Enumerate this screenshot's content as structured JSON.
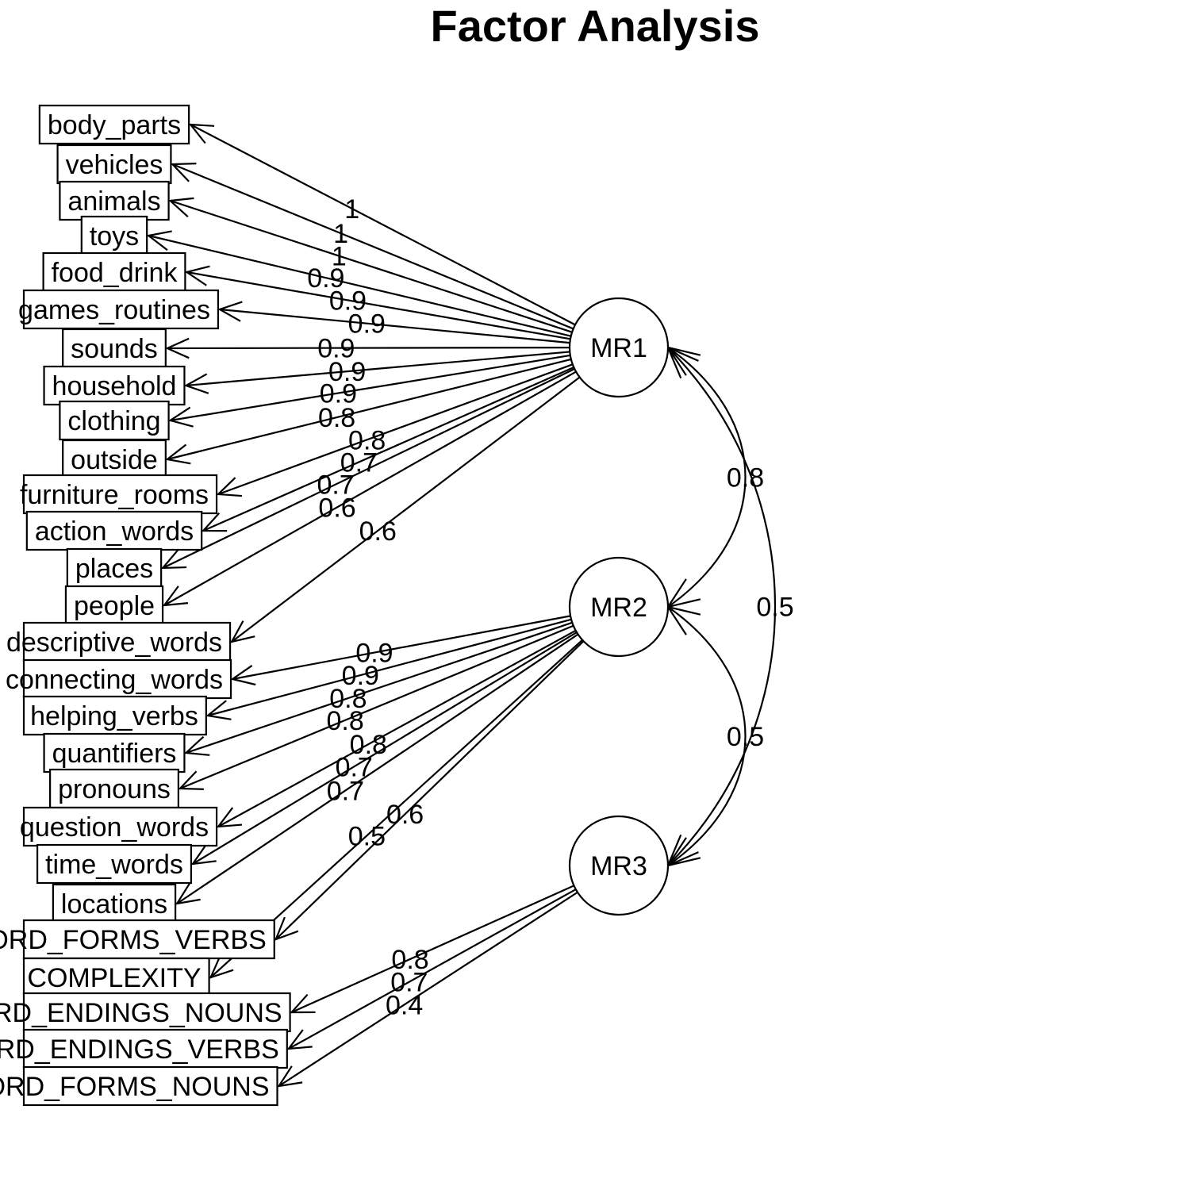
{
  "title": "Factor Analysis",
  "factors": [
    "MR1",
    "MR2",
    "MR3"
  ],
  "variables": [
    {
      "label": "body_parts",
      "factor": "MR1",
      "loading": "1"
    },
    {
      "label": "vehicles",
      "factor": "MR1",
      "loading": "1"
    },
    {
      "label": "animals",
      "factor": "MR1",
      "loading": "1"
    },
    {
      "label": "toys",
      "factor": "MR1",
      "loading": "0.9"
    },
    {
      "label": "food_drink",
      "factor": "MR1",
      "loading": "0.9"
    },
    {
      "label": "games_routines",
      "factor": "MR1",
      "loading": "0.9"
    },
    {
      "label": "sounds",
      "factor": "MR1",
      "loading": "0.9"
    },
    {
      "label": "household",
      "factor": "MR1",
      "loading": "0.9"
    },
    {
      "label": "clothing",
      "factor": "MR1",
      "loading": "0.9"
    },
    {
      "label": "outside",
      "factor": "MR1",
      "loading": "0.8"
    },
    {
      "label": "furniture_rooms",
      "factor": "MR1",
      "loading": "0.8"
    },
    {
      "label": "action_words",
      "factor": "MR1",
      "loading": "0.7"
    },
    {
      "label": "places",
      "factor": "MR1",
      "loading": "0.7"
    },
    {
      "label": "people",
      "factor": "MR1",
      "loading": "0.6"
    },
    {
      "label": "descriptive_words",
      "factor": "MR1",
      "loading": "0.6"
    },
    {
      "label": "connecting_words",
      "factor": "MR2",
      "loading": "0.9"
    },
    {
      "label": "helping_verbs",
      "factor": "MR2",
      "loading": "0.9"
    },
    {
      "label": "quantifiers",
      "factor": "MR2",
      "loading": "0.8"
    },
    {
      "label": "pronouns",
      "factor": "MR2",
      "loading": "0.8"
    },
    {
      "label": "question_words",
      "factor": "MR2",
      "loading": "0.8"
    },
    {
      "label": "time_words",
      "factor": "MR2",
      "loading": "0.7"
    },
    {
      "label": "locations",
      "factor": "MR2",
      "loading": "0.7"
    },
    {
      "label": "WORD_FORMS_VERBS",
      "factor": "MR2",
      "loading": "0.6"
    },
    {
      "label": "COMPLEXITY",
      "factor": "MR2",
      "loading": "0.5"
    },
    {
      "label": "WORD_ENDINGS_NOUNS",
      "factor": "MR3",
      "loading": "0.8"
    },
    {
      "label": "WORD_ENDINGS_VERBS",
      "factor": "MR3",
      "loading": "0.7"
    },
    {
      "label": "WORD_FORMS_NOUNS",
      "factor": "MR3",
      "loading": "0.4"
    }
  ],
  "correlations": [
    {
      "from": "MR1",
      "to": "MR2",
      "value": "0.8"
    },
    {
      "from": "MR2",
      "to": "MR3",
      "value": "0.5"
    },
    {
      "from": "MR1",
      "to": "MR3",
      "value": "0.5"
    }
  ]
}
